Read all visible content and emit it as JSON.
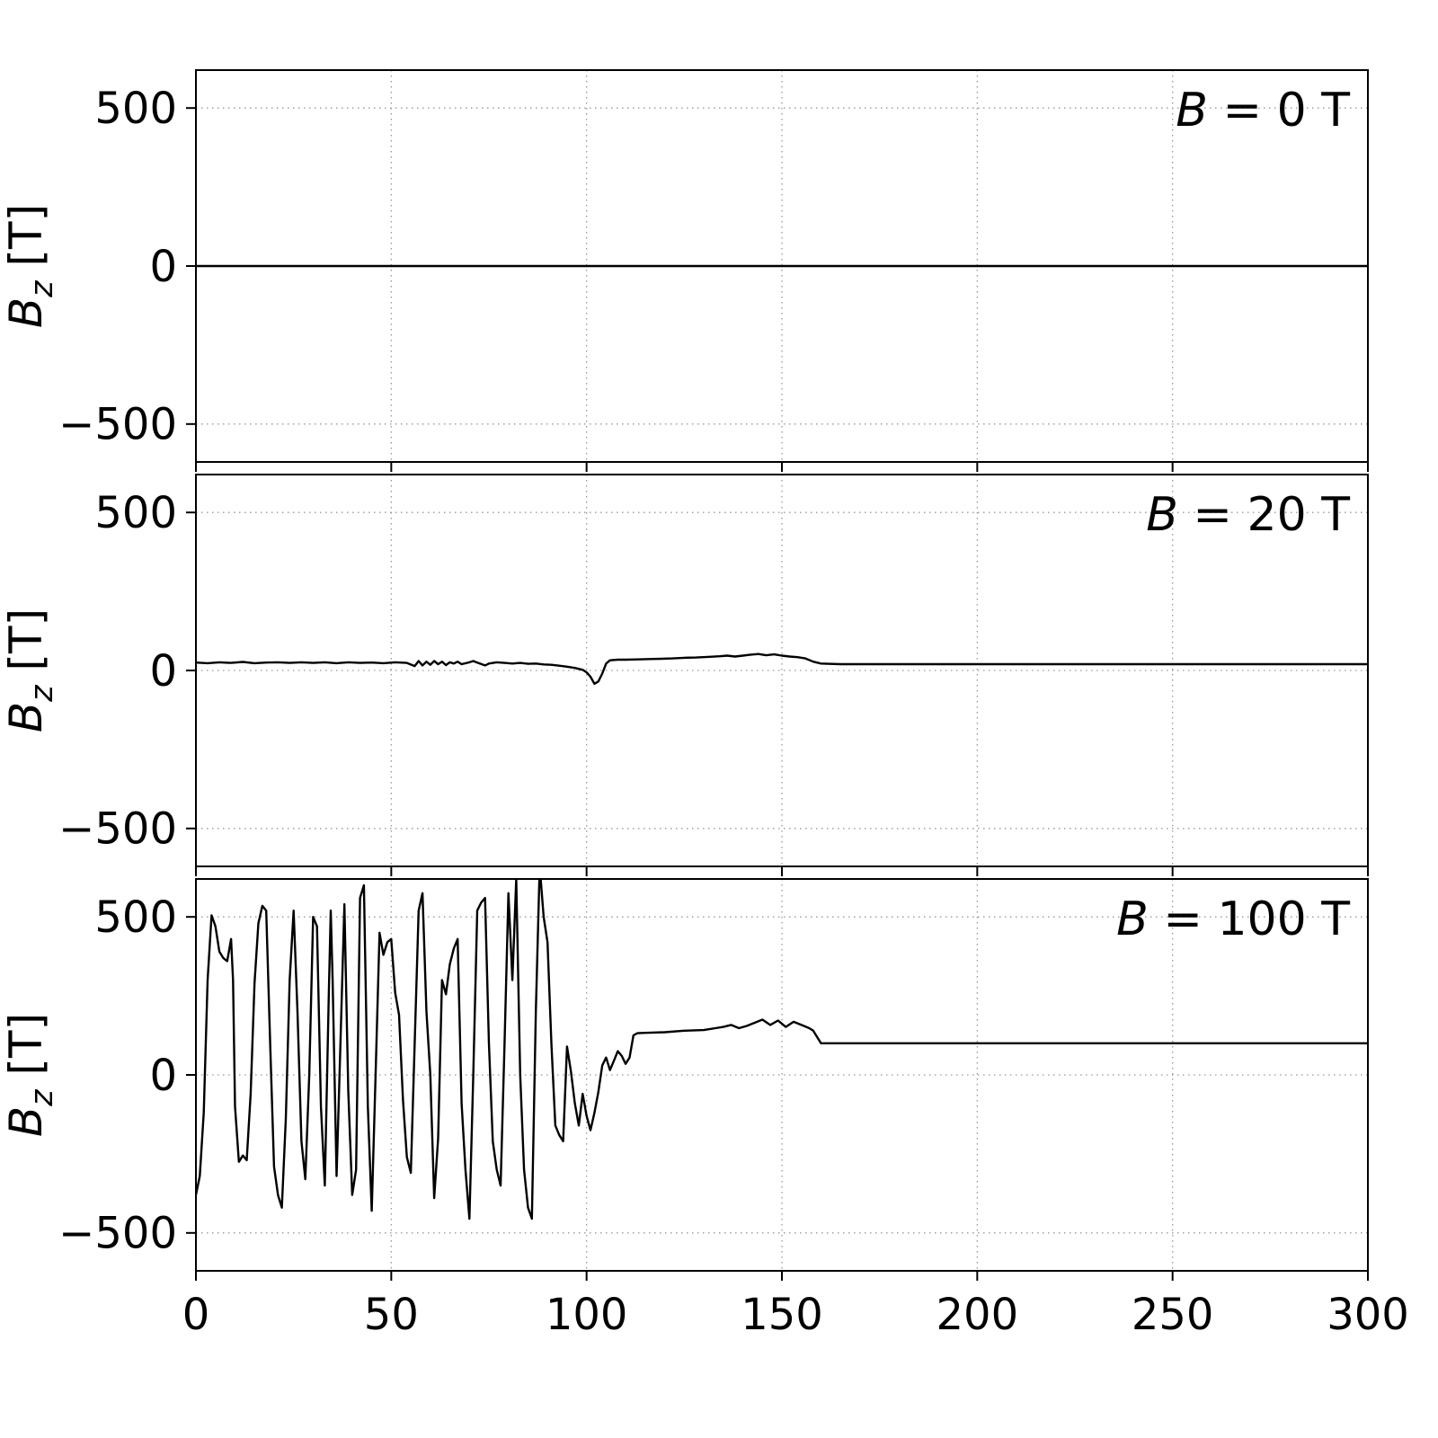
{
  "figure": {
    "background": "#ffffff",
    "line_color": "#000000",
    "grid_color": "#999999",
    "axis_color": "#000000"
  },
  "chart_data": {
    "type": "line",
    "title": "",
    "xlabel": "",
    "ylabel": {
      "variable": "B",
      "subscript": "z",
      "unit": "[T]"
    },
    "xlim": [
      0,
      300
    ],
    "ylim": [
      -620,
      620
    ],
    "x_ticks": [
      0,
      50,
      100,
      150,
      200,
      250,
      300
    ],
    "y_ticks": [
      500,
      0,
      -500
    ],
    "grid": "dotted",
    "legend": "none",
    "panels": [
      {
        "annotation_variable": "B",
        "annotation_rest": "= 0 T",
        "series": [
          [
            0,
            0
          ],
          [
            300,
            0
          ]
        ]
      },
      {
        "annotation_variable": "B",
        "annotation_rest": "= 20 T",
        "series": [
          [
            0,
            25
          ],
          [
            3,
            23
          ],
          [
            6,
            26
          ],
          [
            9,
            24
          ],
          [
            12,
            27
          ],
          [
            15,
            23
          ],
          [
            18,
            25
          ],
          [
            21,
            26
          ],
          [
            24,
            24
          ],
          [
            27,
            26
          ],
          [
            30,
            24
          ],
          [
            33,
            26
          ],
          [
            36,
            23
          ],
          [
            39,
            26
          ],
          [
            42,
            24
          ],
          [
            45,
            25
          ],
          [
            48,
            23
          ],
          [
            51,
            26
          ],
          [
            54,
            24
          ],
          [
            56,
            14
          ],
          [
            57,
            30
          ],
          [
            58,
            16
          ],
          [
            59,
            28
          ],
          [
            60,
            18
          ],
          [
            61,
            30
          ],
          [
            62,
            20
          ],
          [
            63,
            28
          ],
          [
            64,
            17
          ],
          [
            65,
            26
          ],
          [
            66,
            22
          ],
          [
            67,
            28
          ],
          [
            68,
            20
          ],
          [
            70,
            26
          ],
          [
            71,
            30
          ],
          [
            72,
            25
          ],
          [
            74,
            16
          ],
          [
            75,
            22
          ],
          [
            77,
            26
          ],
          [
            79,
            24
          ],
          [
            81,
            22
          ],
          [
            83,
            24
          ],
          [
            85,
            21
          ],
          [
            87,
            22
          ],
          [
            89,
            19
          ],
          [
            91,
            18
          ],
          [
            93,
            15
          ],
          [
            95,
            12
          ],
          [
            97,
            8
          ],
          [
            99,
            2
          ],
          [
            100,
            -6
          ],
          [
            101,
            -20
          ],
          [
            102,
            -42
          ],
          [
            103,
            -35
          ],
          [
            104,
            -10
          ],
          [
            105,
            22
          ],
          [
            106,
            32
          ],
          [
            108,
            34
          ],
          [
            110,
            34
          ],
          [
            113,
            35
          ],
          [
            116,
            36
          ],
          [
            119,
            37
          ],
          [
            122,
            38
          ],
          [
            125,
            40
          ],
          [
            128,
            41
          ],
          [
            131,
            43
          ],
          [
            134,
            45
          ],
          [
            136,
            47
          ],
          [
            138,
            44
          ],
          [
            140,
            47
          ],
          [
            142,
            50
          ],
          [
            144,
            52
          ],
          [
            146,
            48
          ],
          [
            148,
            51
          ],
          [
            150,
            47
          ],
          [
            152,
            44
          ],
          [
            154,
            42
          ],
          [
            156,
            38
          ],
          [
            158,
            28
          ],
          [
            160,
            22
          ],
          [
            165,
            20
          ],
          [
            300,
            20
          ]
        ]
      },
      {
        "annotation_variable": "B",
        "annotation_rest": "= 100 T",
        "series": [
          [
            0,
            -380
          ],
          [
            1,
            -320
          ],
          [
            2,
            -120
          ],
          [
            3,
            300
          ],
          [
            4,
            505
          ],
          [
            5,
            470
          ],
          [
            6,
            390
          ],
          [
            7,
            370
          ],
          [
            8,
            360
          ],
          [
            9,
            430
          ],
          [
            9.5,
            300
          ],
          [
            10,
            -100
          ],
          [
            11,
            -275
          ],
          [
            12,
            -255
          ],
          [
            13,
            -270
          ],
          [
            14,
            -60
          ],
          [
            15,
            290
          ],
          [
            16,
            480
          ],
          [
            17,
            535
          ],
          [
            18,
            520
          ],
          [
            19,
            100
          ],
          [
            20,
            -290
          ],
          [
            21,
            -380
          ],
          [
            22,
            -420
          ],
          [
            23,
            -140
          ],
          [
            24,
            300
          ],
          [
            25,
            520
          ],
          [
            26,
            200
          ],
          [
            27,
            -210
          ],
          [
            28,
            -330
          ],
          [
            29,
            0
          ],
          [
            30,
            500
          ],
          [
            31,
            470
          ],
          [
            32,
            -100
          ],
          [
            33,
            -350
          ],
          [
            34,
            250
          ],
          [
            34.5,
            520
          ],
          [
            35,
            300
          ],
          [
            36,
            -320
          ],
          [
            37,
            100
          ],
          [
            38,
            540
          ],
          [
            39,
            -50
          ],
          [
            40,
            -380
          ],
          [
            41,
            -300
          ],
          [
            42,
            560
          ],
          [
            43,
            600
          ],
          [
            44,
            -100
          ],
          [
            45,
            -430
          ],
          [
            46,
            0
          ],
          [
            47,
            450
          ],
          [
            48,
            380
          ],
          [
            49,
            420
          ],
          [
            50,
            430
          ],
          [
            51,
            260
          ],
          [
            52,
            190
          ],
          [
            53,
            -80
          ],
          [
            54,
            -260
          ],
          [
            55,
            -310
          ],
          [
            56,
            100
          ],
          [
            57,
            520
          ],
          [
            58,
            575
          ],
          [
            59,
            200
          ],
          [
            60,
            0
          ],
          [
            61,
            -390
          ],
          [
            62,
            -200
          ],
          [
            63,
            300
          ],
          [
            64,
            255
          ],
          [
            65,
            350
          ],
          [
            66,
            400
          ],
          [
            67,
            430
          ],
          [
            68,
            -90
          ],
          [
            69,
            -300
          ],
          [
            70,
            -455
          ],
          [
            71,
            0
          ],
          [
            72,
            520
          ],
          [
            73,
            545
          ],
          [
            74,
            560
          ],
          [
            75,
            100
          ],
          [
            76,
            -210
          ],
          [
            77,
            -300
          ],
          [
            78,
            -350
          ],
          [
            79,
            100
          ],
          [
            80,
            575
          ],
          [
            81,
            300
          ],
          [
            82,
            620
          ],
          [
            83,
            0
          ],
          [
            84,
            -300
          ],
          [
            85,
            -420
          ],
          [
            86,
            -455
          ],
          [
            87,
            200
          ],
          [
            88,
            660
          ],
          [
            89,
            500
          ],
          [
            90,
            420
          ],
          [
            91,
            100
          ],
          [
            92,
            -160
          ],
          [
            93,
            -190
          ],
          [
            94,
            -210
          ],
          [
            95,
            90
          ],
          [
            96,
            10
          ],
          [
            97,
            -90
          ],
          [
            98,
            -160
          ],
          [
            99,
            -60
          ],
          [
            100,
            -130
          ],
          [
            101,
            -175
          ],
          [
            102,
            -120
          ],
          [
            103,
            -55
          ],
          [
            104,
            30
          ],
          [
            105,
            55
          ],
          [
            106,
            15
          ],
          [
            107,
            45
          ],
          [
            108,
            75
          ],
          [
            109,
            60
          ],
          [
            110,
            35
          ],
          [
            111,
            55
          ],
          [
            112,
            125
          ],
          [
            113,
            132
          ],
          [
            115,
            133
          ],
          [
            120,
            135
          ],
          [
            125,
            140
          ],
          [
            130,
            142
          ],
          [
            133,
            148
          ],
          [
            135,
            152
          ],
          [
            137,
            158
          ],
          [
            139,
            148
          ],
          [
            141,
            155
          ],
          [
            143,
            165
          ],
          [
            145,
            175
          ],
          [
            147,
            158
          ],
          [
            149,
            172
          ],
          [
            151,
            152
          ],
          [
            153,
            168
          ],
          [
            155,
            158
          ],
          [
            157,
            148
          ],
          [
            158,
            140
          ],
          [
            159,
            120
          ],
          [
            160,
            100
          ],
          [
            165,
            100
          ],
          [
            300,
            100
          ]
        ]
      }
    ]
  }
}
